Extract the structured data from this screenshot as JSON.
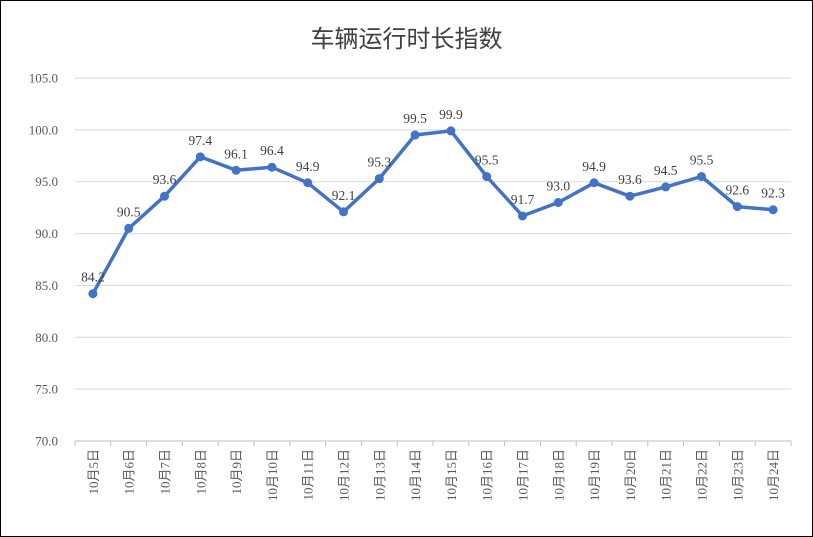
{
  "chart_data": {
    "type": "line",
    "title": "车辆运行时长指数",
    "categories": [
      "10月5日",
      "10月6日",
      "10月7日",
      "10月8日",
      "10月9日",
      "10月10日",
      "10月11日",
      "10月12日",
      "10月13日",
      "10月14日",
      "10月15日",
      "10月16日",
      "10月17日",
      "10月18日",
      "10月19日",
      "10月20日",
      "10月21日",
      "10月22日",
      "10月23日",
      "10月24日"
    ],
    "values": [
      84.2,
      90.5,
      93.6,
      97.4,
      96.1,
      96.4,
      94.9,
      92.1,
      95.3,
      99.5,
      99.9,
      95.5,
      91.7,
      93.0,
      94.9,
      93.6,
      94.5,
      95.5,
      92.6,
      92.3
    ],
    "value_labels": [
      "84.2",
      "90.5",
      "93.6",
      "97.4",
      "96.1",
      "96.4",
      "94.9",
      "92.1",
      "95.3",
      "99.5",
      "99.9",
      "95.5",
      "91.7",
      "93.0",
      "94.9",
      "93.6",
      "94.5",
      "95.5",
      "92.6",
      "92.3"
    ],
    "y_ticks": [
      "70.0",
      "75.0",
      "80.0",
      "85.0",
      "90.0",
      "95.0",
      "100.0",
      "105.0"
    ],
    "ylim": [
      70,
      105
    ],
    "grid": true,
    "legend": "none",
    "colors": {
      "line": "#4472C4",
      "grid": "#D9D9D9",
      "axis": "#BFBFBF"
    }
  }
}
